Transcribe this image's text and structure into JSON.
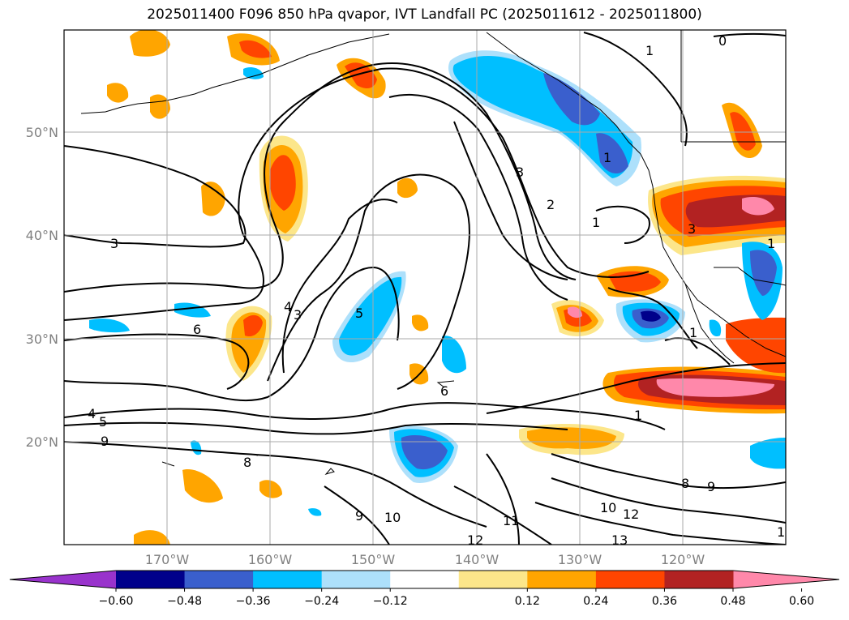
{
  "title": "2025011400 F096 850 hPa qvapor, IVT Landfall PC (2025011612 - 2025011800)",
  "latitudes": [
    "50°N",
    "40°N",
    "30°N",
    "20°N"
  ],
  "longitudes": [
    "170°W",
    "160°W",
    "150°W",
    "140°W",
    "130°W",
    "120°W"
  ],
  "colorbar": {
    "ticks": [
      "−0.60",
      "−0.48",
      "−0.36",
      "−0.24",
      "−0.12",
      "0.12",
      "0.24",
      "0.36",
      "0.48",
      "0.60"
    ],
    "colors": [
      "#9933cc",
      "#00008b",
      "#3a5fcd",
      "#00bfff",
      "#ade0fb",
      "#ffffff",
      "#fce68a",
      "#ffa500",
      "#ff4500",
      "#b22222",
      "#ff88aa"
    ]
  },
  "contour_labels": [
    "0",
    "1",
    "1",
    "1",
    "1",
    "1",
    "1",
    "2",
    "3",
    "3",
    "3",
    "3",
    "4",
    "4",
    "5",
    "5",
    "6",
    "6",
    "8",
    "8",
    "9",
    "9",
    "9",
    "10",
    "10",
    "11",
    "12",
    "12",
    "13",
    "1"
  ]
}
